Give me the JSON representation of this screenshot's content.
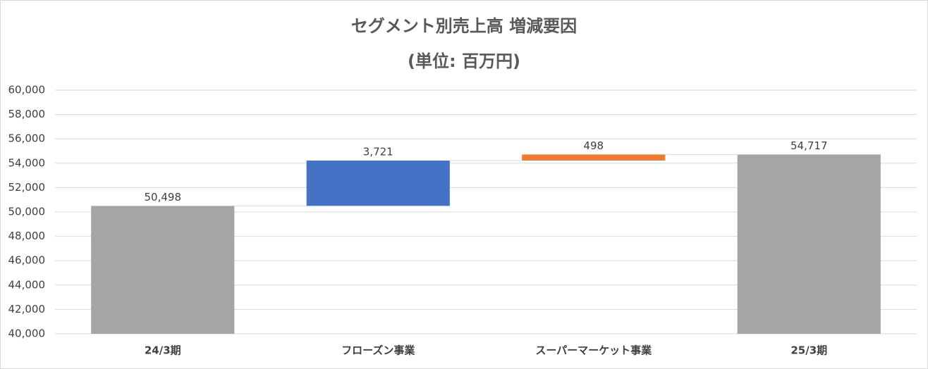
{
  "chart_data": {
    "type": "waterfall",
    "title": "セグメント別売上高 増減要因",
    "subtitle": "(単位: 百万円)",
    "categories": [
      "24/3期",
      "フローズン事業",
      "スーパーマーケット事業",
      "25/3期"
    ],
    "measures": [
      "absolute",
      "relative",
      "relative",
      "total"
    ],
    "values": [
      50498,
      3721,
      498,
      54717
    ],
    "value_labels": [
      "50,498",
      "3,721",
      "498",
      "54,717"
    ],
    "colors": [
      "#a5a5a5",
      "#4472c4",
      "#ed7d31",
      "#a5a5a5"
    ],
    "ylim": [
      40000,
      60000
    ],
    "yticks": [
      {
        "value": 40000,
        "label": "40,000"
      },
      {
        "value": 42000,
        "label": "42,000"
      },
      {
        "value": 44000,
        "label": "44,000"
      },
      {
        "value": 46000,
        "label": "46,000"
      },
      {
        "value": 48000,
        "label": "48,000"
      },
      {
        "value": 50000,
        "label": "50,000"
      },
      {
        "value": 52000,
        "label": "52,000"
      },
      {
        "value": 54000,
        "label": "54,000"
      },
      {
        "value": 56000,
        "label": "56,000"
      },
      {
        "value": 58000,
        "label": "58,000"
      },
      {
        "value": 60000,
        "label": "60,000"
      }
    ],
    "grid": true
  }
}
